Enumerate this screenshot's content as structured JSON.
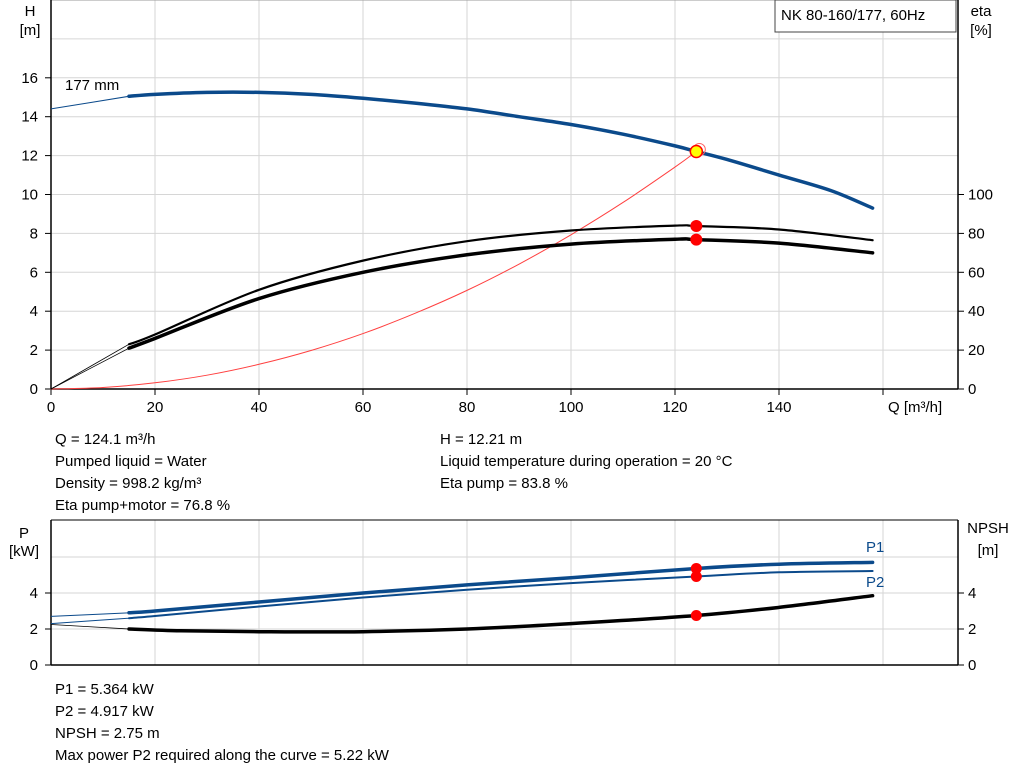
{
  "chart_data": [
    {
      "type": "line",
      "title": "NK 80-160/177, 60Hz",
      "xlabel": "Q [m³/h]",
      "ylabel_left": [
        "H",
        "[m]"
      ],
      "ylabel_right": [
        "eta",
        "[%]"
      ],
      "xlim": [
        0,
        174
      ],
      "ylim_left": [
        0,
        20
      ],
      "ylim_right": [
        0,
        200
      ],
      "x_ticks": [
        0,
        20,
        40,
        60,
        80,
        100,
        120,
        140
      ],
      "y_ticks_left": [
        0,
        2,
        4,
        6,
        8,
        10,
        12,
        14,
        16
      ],
      "y_ticks_right": [
        0,
        20,
        40,
        60,
        80,
        100
      ],
      "grid": true,
      "curve_label": "177 mm",
      "series": [
        {
          "key": "head",
          "axis": "left",
          "color": "#0b4a8b",
          "x": [
            0,
            15,
            20,
            30,
            40,
            50,
            60,
            70,
            80,
            90,
            100,
            110,
            120,
            124.1,
            130,
            140,
            150,
            158
          ],
          "y": [
            14.4,
            15.05,
            15.15,
            15.25,
            15.25,
            15.15,
            14.95,
            14.7,
            14.4,
            14.0,
            13.6,
            13.1,
            12.5,
            12.21,
            11.8,
            11.0,
            10.2,
            9.3
          ]
        },
        {
          "key": "eta_pump",
          "axis": "right",
          "color": "#000000",
          "x": [
            0,
            15,
            20,
            40,
            60,
            80,
            100,
            120,
            124.1,
            140,
            158
          ],
          "y": [
            0,
            23,
            28,
            51,
            66,
            76,
            81.5,
            84,
            83.8,
            82,
            76.5
          ]
        },
        {
          "key": "eta_pump_motor",
          "axis": "right",
          "color": "#000000",
          "x": [
            0,
            15,
            20,
            40,
            60,
            80,
            100,
            120,
            124.1,
            140,
            158
          ],
          "y": [
            0,
            21,
            26,
            46.5,
            60,
            69,
            74.5,
            77,
            76.8,
            75,
            70
          ]
        },
        {
          "key": "system_curve",
          "axis": "left",
          "color": "#ff4040",
          "x": [
            0,
            10,
            20,
            30,
            40,
            50,
            60,
            70,
            80,
            90,
            100,
            110,
            120,
            124.1
          ],
          "y": [
            0,
            0.08,
            0.32,
            0.71,
            1.27,
            1.98,
            2.85,
            3.89,
            5.07,
            6.42,
            7.93,
            9.59,
            11.41,
            12.21
          ]
        }
      ],
      "operating_point": {
        "Q": 124.1,
        "H": 12.21,
        "eta_pump": 83.8,
        "eta_pump_motor": 76.8,
        "marker_color": "#ffff00"
      }
    },
    {
      "type": "line",
      "ylabel_left": [
        "P",
        "[kW]"
      ],
      "ylabel_right": [
        "NPSH",
        "[m]"
      ],
      "xlim": [
        0,
        174
      ],
      "ylim_left": [
        0,
        8
      ],
      "ylim_right": [
        0,
        8
      ],
      "y_ticks_left": [
        0,
        2,
        4
      ],
      "y_ticks_right": [
        0,
        2,
        4
      ],
      "grid": true,
      "series": [
        {
          "key": "P1",
          "name": "P1",
          "color": "#0b4a8b",
          "x": [
            0,
            15,
            20,
            40,
            60,
            80,
            100,
            124.1,
            140,
            158
          ],
          "y": [
            2.7,
            2.9,
            3.0,
            3.5,
            4.0,
            4.45,
            4.85,
            5.364,
            5.6,
            5.7
          ]
        },
        {
          "key": "P2",
          "name": "P2",
          "color": "#0b4a8b",
          "x": [
            0,
            15,
            20,
            40,
            60,
            80,
            100,
            124.1,
            140,
            158
          ],
          "y": [
            2.3,
            2.6,
            2.72,
            3.25,
            3.75,
            4.18,
            4.55,
            4.917,
            5.15,
            5.22
          ]
        },
        {
          "key": "NPSH",
          "color": "#000000",
          "x": [
            0,
            15,
            25,
            40,
            60,
            80,
            100,
            124.1,
            140,
            158
          ],
          "y": [
            2.25,
            2.0,
            1.9,
            1.85,
            1.85,
            2.0,
            2.3,
            2.75,
            3.2,
            3.85
          ]
        }
      ],
      "operating_point": {
        "Q": 124.1,
        "P1": 5.364,
        "P2": 4.917,
        "NPSH": 2.75
      }
    }
  ],
  "info_top_left": [
    "Q = 124.1 m³/h",
    "Pumped liquid = Water",
    "Density = 998.2 kg/m³",
    "Eta pump+motor = 76.8 %"
  ],
  "info_top_right": [
    "H = 12.21 m",
    "Liquid temperature during operation = 20 °C",
    "Eta pump = 83.8 %"
  ],
  "info_bottom": [
    "P1 = 5.364 kW",
    "P2 = 4.917 kW",
    "NPSH = 2.75 m",
    "Max power P2 required along the curve = 5.22 kW"
  ]
}
